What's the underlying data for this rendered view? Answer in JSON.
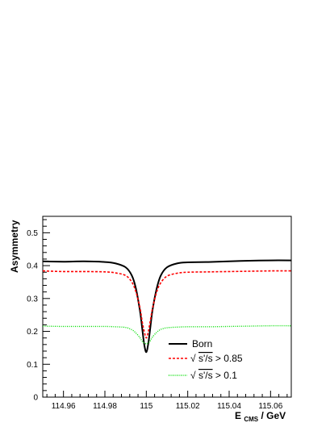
{
  "chart_data": {
    "type": "line",
    "title": "",
    "xlabel_main": "E",
    "xlabel_sub": "CMS",
    "xlabel_unit": " / GeV",
    "ylabel": "Asymmetry",
    "xlim": [
      114.95,
      115.07
    ],
    "ylim": [
      0,
      0.55
    ],
    "x_ticks": [
      "114.96",
      "114.98",
      "115",
      "115.02",
      "115.04",
      "115.06"
    ],
    "y_ticks": [
      "0",
      "0.1",
      "0.2",
      "0.3",
      "0.4",
      "0.5"
    ],
    "x_tick_values": [
      114.96,
      114.98,
      115.0,
      115.02,
      115.04,
      115.06
    ],
    "y_tick_values": [
      0,
      0.1,
      0.2,
      0.3,
      0.4,
      0.5
    ],
    "legend_position": "bottom-right",
    "series": [
      {
        "name": "Born",
        "color": "#000000",
        "style": "solid",
        "x": [
          114.95,
          114.96,
          114.97,
          114.98,
          114.985,
          114.99,
          114.993,
          114.995,
          114.997,
          114.998,
          114.999,
          115.0,
          115.001,
          115.002,
          115.003,
          115.005,
          115.007,
          115.01,
          115.015,
          115.02,
          115.03,
          115.04,
          115.05,
          115.06,
          115.07
        ],
        "values": [
          0.413,
          0.412,
          0.413,
          0.411,
          0.407,
          0.395,
          0.37,
          0.33,
          0.26,
          0.21,
          0.16,
          0.137,
          0.165,
          0.215,
          0.265,
          0.33,
          0.37,
          0.395,
          0.407,
          0.41,
          0.411,
          0.413,
          0.415,
          0.416,
          0.416
        ]
      },
      {
        "name": "√s'/s > 0.85",
        "color": "#ff0000",
        "style": "dashed",
        "x": [
          114.95,
          114.96,
          114.97,
          114.98,
          114.985,
          114.99,
          114.993,
          114.995,
          114.997,
          114.998,
          114.999,
          115.0,
          115.001,
          115.002,
          115.003,
          115.005,
          115.007,
          115.01,
          115.015,
          115.02,
          115.03,
          115.04,
          115.05,
          115.06,
          115.07
        ],
        "values": [
          0.384,
          0.382,
          0.382,
          0.381,
          0.378,
          0.37,
          0.35,
          0.32,
          0.27,
          0.23,
          0.2,
          0.18,
          0.2,
          0.235,
          0.27,
          0.32,
          0.348,
          0.368,
          0.377,
          0.38,
          0.381,
          0.382,
          0.383,
          0.384,
          0.384
        ]
      },
      {
        "name": "√s'/s > 0.1",
        "color": "#00dd00",
        "style": "dotted",
        "x": [
          114.95,
          114.96,
          114.97,
          114.98,
          114.985,
          114.99,
          114.993,
          114.995,
          114.997,
          114.998,
          114.999,
          115.0,
          115.001,
          115.002,
          115.003,
          115.005,
          115.007,
          115.01,
          115.015,
          115.02,
          115.03,
          115.04,
          115.05,
          115.06,
          115.07
        ],
        "values": [
          0.216,
          0.215,
          0.215,
          0.215,
          0.214,
          0.212,
          0.205,
          0.195,
          0.18,
          0.17,
          0.165,
          0.162,
          0.165,
          0.172,
          0.183,
          0.197,
          0.206,
          0.211,
          0.213,
          0.214,
          0.214,
          0.215,
          0.216,
          0.217,
          0.217
        ]
      }
    ],
    "legend": [
      {
        "label": "Born",
        "prefix": "",
        "radicand": "",
        "suffix": ""
      },
      {
        "label": "",
        "prefix": "√",
        "radicand": "s'/s",
        "suffix": " > 0.85"
      },
      {
        "label": "",
        "prefix": "√",
        "radicand": "s'/s",
        "suffix": " > 0.1"
      }
    ]
  }
}
